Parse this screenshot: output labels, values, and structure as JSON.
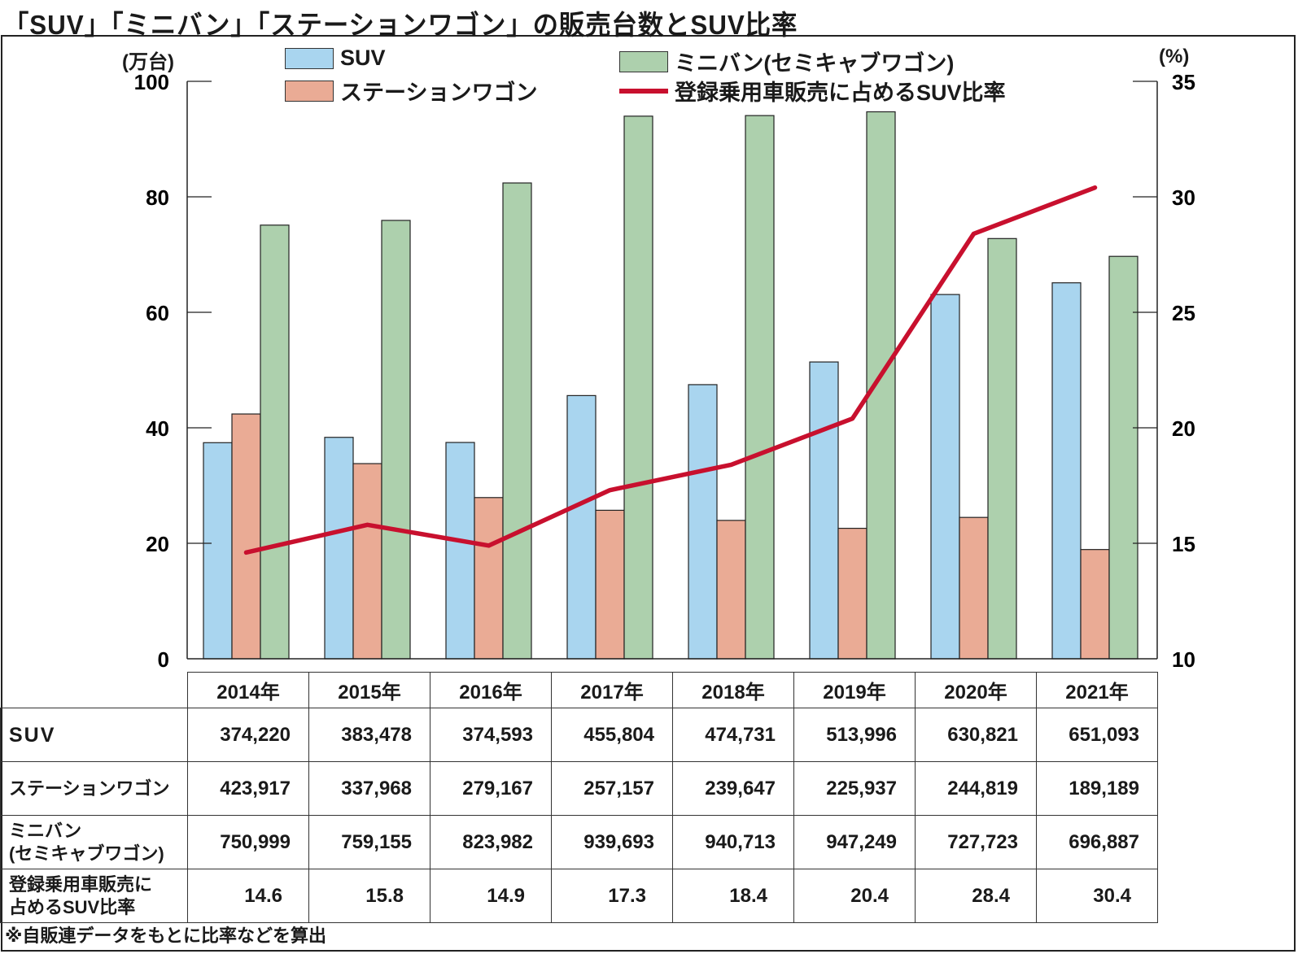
{
  "title": "「SUV」「ミニバン」「ステーションワゴン」の販売台数とSUV比率",
  "footnote": "※自販連データをもとに比率などを算出",
  "colors": {
    "suv": "#a9d5ef",
    "wagon": "#eaab95",
    "minivan": "#add0ad",
    "ratio_line": "#c8102e",
    "axis": "#222222"
  },
  "legend": {
    "suv": "SUV",
    "minivan": "ミニバン(セミキャブワゴン)",
    "wagon": "ステーションワゴン",
    "ratio": "登録乗用車販売に占めるSUV比率"
  },
  "table": {
    "row_labels": {
      "suv": "SUV",
      "wagon": "ステーションワゴン",
      "minivan_line1": "ミニバン",
      "minivan_line2": "(セミキャブワゴン)",
      "ratio_line1": "登録乗用車販売に",
      "ratio_line2": "占めるSUV比率"
    },
    "suv": [
      "374,220",
      "383,478",
      "374,593",
      "455,804",
      "474,731",
      "513,996",
      "630,821",
      "651,093"
    ],
    "wagon": [
      "423,917",
      "337,968",
      "279,167",
      "257,157",
      "239,647",
      "225,937",
      "244,819",
      "189,189"
    ],
    "minivan": [
      "750,999",
      "759,155",
      "823,982",
      "939,693",
      "940,713",
      "947,249",
      "727,723",
      "696,887"
    ],
    "ratio": [
      "14.6",
      "15.8",
      "14.9",
      "17.3",
      "18.4",
      "20.4",
      "28.4",
      "30.4"
    ]
  },
  "chart_data": {
    "type": "bar",
    "title": "「SUV」「ミニバン」「ステーションワゴン」の販売台数とSUV比率",
    "categories": [
      "2014年",
      "2015年",
      "2016年",
      "2017年",
      "2018年",
      "2019年",
      "2020年",
      "2021年"
    ],
    "series": [
      {
        "name": "SUV",
        "type": "bar",
        "axis": "left",
        "unit": "万台",
        "values": [
          37.422,
          38.3478,
          37.4593,
          45.5804,
          47.4731,
          51.3996,
          63.0821,
          65.1093
        ]
      },
      {
        "name": "ステーションワゴン",
        "type": "bar",
        "axis": "left",
        "unit": "万台",
        "values": [
          42.3917,
          33.7968,
          27.9167,
          25.7157,
          23.9647,
          22.5937,
          24.4819,
          18.9189
        ]
      },
      {
        "name": "ミニバン(セミキャブワゴン)",
        "type": "bar",
        "axis": "left",
        "unit": "万台",
        "values": [
          75.0999,
          75.9155,
          82.3982,
          93.9693,
          94.0713,
          94.7249,
          72.7723,
          69.6887
        ]
      },
      {
        "name": "登録乗用車販売に占めるSUV比率",
        "type": "line",
        "axis": "right",
        "unit": "%",
        "values": [
          14.6,
          15.8,
          14.9,
          17.3,
          18.4,
          20.4,
          28.4,
          30.4
        ]
      }
    ],
    "y_left": {
      "label": "(万台)",
      "ylim": [
        0,
        100
      ],
      "ticks": [
        0,
        20,
        40,
        60,
        80,
        100
      ]
    },
    "y_right": {
      "label": "(%)",
      "ylim": [
        10,
        35
      ],
      "ticks": [
        10,
        15,
        20,
        25,
        30,
        35
      ]
    },
    "xlabel": "",
    "grid": false,
    "legend_position": "top"
  }
}
